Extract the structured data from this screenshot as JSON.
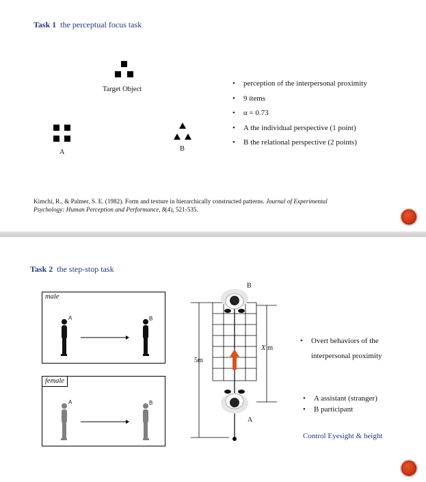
{
  "slide1": {
    "task_number": "Task 1",
    "task_name": "the perceptual focus task",
    "target_label": "Target Object",
    "option_a_label": "A",
    "option_b_label": "B",
    "bullets": [
      "perception of the interpersonal proximity",
      "9 items",
      "α = 0.73",
      "A the individual perspective (1 point)",
      "B the relational perspective (2 points)"
    ],
    "reference": {
      "authors": "Kimchi, R., & Palmer, S. E. (1982). Form and texture in hierarchically constructed patterns.",
      "journal": "Journal of Experimental",
      "journal_line2": "Psychology: Human Perception and Performance,",
      "volume": "8",
      "issue_pages": "(4), 521-535."
    }
  },
  "slide2": {
    "task_number": "Task 2",
    "task_name": "the step-stop task",
    "male_panel": {
      "label": "male",
      "person_a": "A",
      "person_b": "B"
    },
    "female_panel": {
      "label": "female",
      "person_a": "A",
      "person_b": "B"
    },
    "diagram": {
      "top_label": "B",
      "bottom_label": "A",
      "distance_label": "5m",
      "variable_label": "X",
      "variable_unit": "m"
    },
    "bullets_top": [
      "Overt behaviors of the",
      "interpersonal proximity"
    ],
    "bullets_bottom": [
      "A assistant (stranger)",
      "B participant"
    ],
    "control_note": "Control Eyesight & height"
  },
  "colors": {
    "title_blue": "#1f3a7a",
    "accent_red": "#d84b20",
    "female_gray": "#808080",
    "arrow_orange": "#d9541e"
  }
}
